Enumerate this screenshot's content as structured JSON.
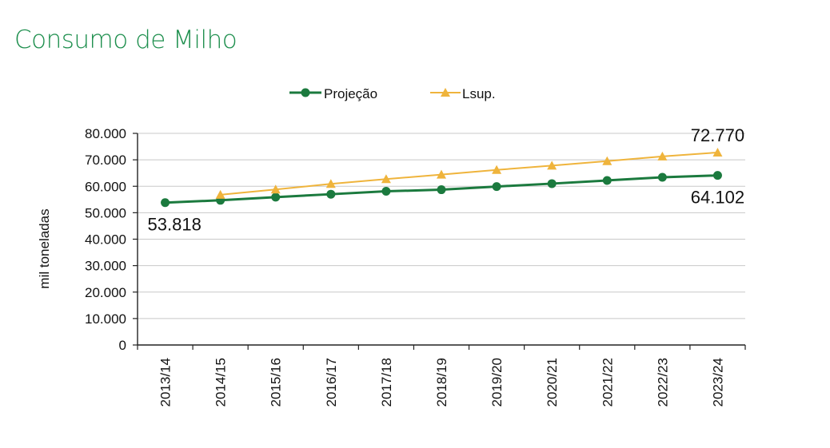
{
  "title": "Consumo de Milho",
  "chart_data": {
    "type": "line",
    "title": "Consumo de Milho",
    "xlabel": "",
    "ylabel": "mil toneladas",
    "categories": [
      "2013/14",
      "2014/15",
      "2015/16",
      "2016/17",
      "2017/18",
      "2018/19",
      "2019/20",
      "2020/21",
      "2021/22",
      "2022/23",
      "2023/24"
    ],
    "ylim": [
      0,
      80000
    ],
    "yticks": [
      0,
      10000,
      20000,
      30000,
      40000,
      50000,
      60000,
      70000,
      80000
    ],
    "ytick_labels": [
      "0",
      "10.000",
      "20.000",
      "30.000",
      "40.000",
      "50.000",
      "60.000",
      "70.000",
      "80.000"
    ],
    "grid": true,
    "legend_position": "top",
    "series": [
      {
        "name": "Projeção",
        "color": "#1b7a3e",
        "marker": "circle",
        "values": [
          53818,
          54700,
          55900,
          57000,
          58100,
          58700,
          59900,
          61000,
          62200,
          63400,
          64102
        ]
      },
      {
        "name": "Lsup.",
        "color": "#efb43c",
        "marker": "triangle",
        "values": [
          null,
          56800,
          58800,
          60900,
          62700,
          64400,
          66200,
          67800,
          69500,
          71300,
          72770
        ]
      }
    ],
    "annotations": [
      {
        "text": "53.818",
        "series": 0,
        "index": 0,
        "position": "below"
      },
      {
        "text": "64.102",
        "series": 0,
        "index": 10,
        "position": "below"
      },
      {
        "text": "72.770",
        "series": 1,
        "index": 10,
        "position": "above"
      }
    ]
  }
}
